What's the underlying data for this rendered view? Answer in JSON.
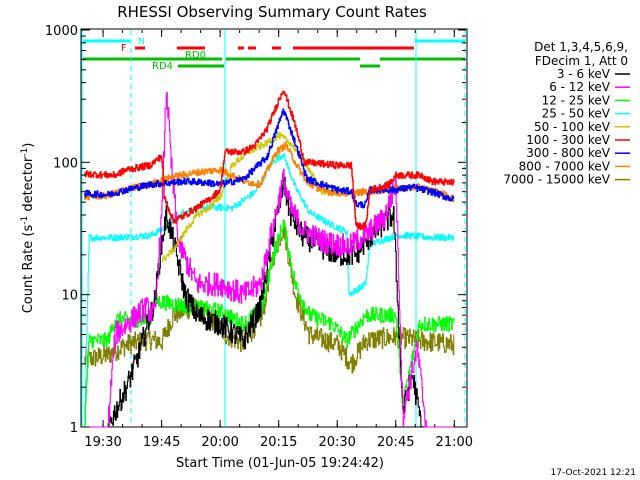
{
  "chart_data": {
    "type": "line",
    "title": "RHESSI Observing Summary Count Rates",
    "xlabel": "Start Time (01-Jun-05 19:24:42)",
    "ylabel_main": "Count Rate (s",
    "ylabel_sup": "-1",
    "ylabel_rest": " detector",
    "ylabel_sup2": "-1",
    "ylabel_end": ")",
    "y_scale": "log",
    "xlim_min": [
      19.41,
      21.05
    ],
    "ylim": [
      1,
      1000
    ],
    "x_ticks": [
      {
        "label": "19:30",
        "t": 19.5
      },
      {
        "label": "19:45",
        "t": 19.75
      },
      {
        "label": "20:00",
        "t": 20.0
      },
      {
        "label": "20:15",
        "t": 20.25
      },
      {
        "label": "20:30",
        "t": 20.5
      },
      {
        "label": "20:45",
        "t": 20.75
      },
      {
        "label": "21:00",
        "t": 21.0
      }
    ],
    "y_ticks": [
      {
        "label": "1",
        "v": 1
      },
      {
        "label": "10",
        "v": 10
      },
      {
        "label": "100",
        "v": 100
      },
      {
        "label": "1000",
        "v": 1000
      }
    ],
    "legend_header": [
      "Det 1,3,4,5,6,9,",
      "FDecim 1, Att 0"
    ],
    "footer_date": "17-Oct-2021 12:21",
    "flag_labels": [
      {
        "text": "N",
        "color": "#00ffff"
      },
      {
        "text": "F",
        "color": "#ff0000"
      },
      {
        "text": "RD0",
        "color": "#00c000"
      },
      {
        "text": "RD4",
        "color": "#00c000"
      }
    ],
    "series": [
      {
        "name": "3 - 6 keV",
        "color": "#000000",
        "points": [
          [
            19.42,
            1.0
          ],
          [
            19.52,
            1.0
          ],
          [
            19.6,
            2.0
          ],
          [
            19.65,
            3.5
          ],
          [
            19.72,
            9
          ],
          [
            19.75,
            25
          ],
          [
            19.77,
            40
          ],
          [
            19.8,
            25
          ],
          [
            19.85,
            10
          ],
          [
            19.9,
            7
          ],
          [
            20.0,
            6
          ],
          [
            20.1,
            4.5
          ],
          [
            20.17,
            8
          ],
          [
            20.22,
            25
          ],
          [
            20.27,
            70
          ],
          [
            20.3,
            40
          ],
          [
            20.35,
            28
          ],
          [
            20.45,
            22
          ],
          [
            20.5,
            20
          ],
          [
            20.58,
            20
          ],
          [
            20.62,
            25
          ],
          [
            20.7,
            35
          ],
          [
            20.74,
            40
          ],
          [
            20.78,
            1.3
          ],
          [
            20.82,
            2.5
          ],
          [
            20.86,
            1.0
          ],
          [
            21.0,
            1.0
          ]
        ]
      },
      {
        "name": "6 - 12 keV",
        "color": "#ff00ff",
        "points": [
          [
            19.42,
            1.0
          ],
          [
            19.52,
            1.0
          ],
          [
            19.55,
            5
          ],
          [
            19.6,
            6
          ],
          [
            19.68,
            8
          ],
          [
            19.72,
            7
          ],
          [
            19.75,
            40
          ],
          [
            19.77,
            380
          ],
          [
            19.79,
            100
          ],
          [
            19.82,
            25
          ],
          [
            19.86,
            17
          ],
          [
            19.9,
            12
          ],
          [
            20.0,
            12
          ],
          [
            20.1,
            10
          ],
          [
            20.17,
            12
          ],
          [
            20.22,
            30
          ],
          [
            20.27,
            75
          ],
          [
            20.3,
            45
          ],
          [
            20.36,
            30
          ],
          [
            20.45,
            25
          ],
          [
            20.55,
            23
          ],
          [
            20.62,
            28
          ],
          [
            20.7,
            38
          ],
          [
            20.75,
            70
          ],
          [
            20.78,
            1.2
          ],
          [
            20.84,
            4
          ],
          [
            20.88,
            1.0
          ],
          [
            21.0,
            1.0
          ]
        ]
      },
      {
        "name": "12 - 25 keV",
        "color": "#00ff00",
        "points": [
          [
            19.42,
            1.0
          ],
          [
            19.44,
            4.5
          ],
          [
            19.52,
            4.5
          ],
          [
            19.55,
            6.5
          ],
          [
            19.7,
            6.5
          ],
          [
            19.72,
            9
          ],
          [
            19.8,
            8.5
          ],
          [
            19.9,
            8
          ],
          [
            20.0,
            7.5
          ],
          [
            20.1,
            6
          ],
          [
            20.18,
            8
          ],
          [
            20.22,
            18
          ],
          [
            20.27,
            35
          ],
          [
            20.32,
            12
          ],
          [
            20.38,
            7
          ],
          [
            20.48,
            6
          ],
          [
            20.54,
            4.5
          ],
          [
            20.62,
            7
          ],
          [
            20.75,
            7
          ],
          [
            20.78,
            1.5
          ],
          [
            20.85,
            6
          ],
          [
            21.0,
            6
          ]
        ]
      },
      {
        "name": "25 - 50 keV",
        "color": "#00ffff",
        "points": [
          [
            19.42,
            1.0
          ],
          [
            19.44,
            27
          ],
          [
            19.55,
            27
          ],
          [
            19.7,
            28
          ],
          [
            19.75,
            31
          ],
          [
            19.8,
            36
          ],
          [
            19.85,
            43
          ],
          [
            19.95,
            46
          ],
          [
            20.05,
            45
          ],
          [
            20.15,
            60
          ],
          [
            20.22,
            100
          ],
          [
            20.27,
            115
          ],
          [
            20.32,
            65
          ],
          [
            20.38,
            42
          ],
          [
            20.47,
            34
          ],
          [
            20.54,
            30
          ],
          [
            20.55,
            10
          ],
          [
            20.62,
            12
          ],
          [
            20.64,
            24
          ],
          [
            20.75,
            28
          ],
          [
            20.8,
            28
          ],
          [
            20.9,
            27
          ],
          [
            21.0,
            27
          ]
        ]
      },
      {
        "name": "50 - 100 keV",
        "color": "#c8c800",
        "points": [
          [
            19.75,
            18
          ],
          [
            19.8,
            22
          ],
          [
            19.85,
            30
          ],
          [
            19.9,
            40
          ],
          [
            19.95,
            45
          ],
          [
            20.0,
            55
          ],
          [
            20.05,
            95
          ],
          [
            20.12,
            120
          ],
          [
            20.2,
            140
          ],
          [
            20.25,
            160
          ],
          [
            20.3,
            140
          ],
          [
            20.37,
            95
          ],
          [
            20.43,
            60
          ],
          [
            20.5,
            60
          ]
        ]
      },
      {
        "name": "100 - 300 keV",
        "color": "#ff0000",
        "points": [
          [
            19.42,
            82
          ],
          [
            19.52,
            80
          ],
          [
            19.55,
            80
          ],
          [
            19.6,
            88
          ],
          [
            19.7,
            95
          ],
          [
            19.75,
            112
          ],
          [
            19.76,
            55
          ],
          [
            19.8,
            36
          ],
          [
            19.85,
            40
          ],
          [
            19.95,
            52
          ],
          [
            20.0,
            62
          ],
          [
            20.02,
            120
          ],
          [
            20.1,
            120
          ],
          [
            20.15,
            135
          ],
          [
            20.2,
            180
          ],
          [
            20.27,
            360
          ],
          [
            20.32,
            190
          ],
          [
            20.36,
            100
          ],
          [
            20.5,
            95
          ],
          [
            20.56,
            95
          ],
          [
            20.58,
            33
          ],
          [
            20.62,
            33
          ],
          [
            20.64,
            62
          ],
          [
            20.72,
            68
          ],
          [
            20.75,
            80
          ],
          [
            20.86,
            80
          ],
          [
            20.9,
            72
          ],
          [
            21.0,
            70
          ]
        ]
      },
      {
        "name": "300 - 800 keV",
        "color": "#0000ff",
        "points": [
          [
            19.42,
            58
          ],
          [
            19.52,
            57
          ],
          [
            19.6,
            62
          ],
          [
            19.7,
            68
          ],
          [
            19.78,
            70
          ],
          [
            19.85,
            72
          ],
          [
            19.95,
            70
          ],
          [
            20.0,
            68
          ],
          [
            20.1,
            75
          ],
          [
            20.2,
            110
          ],
          [
            20.27,
            250
          ],
          [
            20.32,
            140
          ],
          [
            20.37,
            75
          ],
          [
            20.5,
            62
          ],
          [
            20.56,
            60
          ],
          [
            20.58,
            48
          ],
          [
            20.62,
            48
          ],
          [
            20.64,
            62
          ],
          [
            20.75,
            62
          ],
          [
            20.82,
            65
          ],
          [
            20.9,
            60
          ],
          [
            21.0,
            52
          ]
        ]
      },
      {
        "name": "800 - 7000 keV",
        "color": "#ff8000",
        "points": [
          [
            19.42,
            55
          ],
          [
            19.52,
            56
          ],
          [
            19.6,
            63
          ],
          [
            19.7,
            68
          ],
          [
            19.8,
            78
          ],
          [
            19.9,
            84
          ],
          [
            20.0,
            88
          ],
          [
            20.05,
            80
          ],
          [
            20.1,
            72
          ],
          [
            20.17,
            68
          ],
          [
            20.24,
            120
          ],
          [
            20.28,
            135
          ],
          [
            20.32,
            100
          ],
          [
            20.37,
            70
          ],
          [
            20.45,
            60
          ],
          [
            20.55,
            58
          ],
          [
            20.62,
            60
          ],
          [
            20.75,
            63
          ],
          [
            20.85,
            65
          ],
          [
            20.95,
            58
          ],
          [
            21.0,
            52
          ]
        ]
      },
      {
        "name": "7000 - 15000 keV",
        "color": "#808000",
        "points": [
          [
            19.42,
            3.2
          ],
          [
            19.52,
            3.5
          ],
          [
            19.6,
            4.2
          ],
          [
            19.7,
            4.6
          ],
          [
            19.75,
            4.4
          ],
          [
            19.8,
            7
          ],
          [
            19.88,
            8
          ],
          [
            19.95,
            7
          ],
          [
            20.02,
            5
          ],
          [
            20.1,
            4.3
          ],
          [
            20.18,
            7
          ],
          [
            20.22,
            18
          ],
          [
            20.27,
            33
          ],
          [
            20.32,
            10
          ],
          [
            20.38,
            5
          ],
          [
            20.5,
            4.2
          ],
          [
            20.56,
            3.0
          ],
          [
            20.62,
            4.5
          ],
          [
            20.75,
            4.8
          ],
          [
            20.85,
            4.5
          ],
          [
            20.95,
            4.3
          ],
          [
            21.0,
            4.2
          ]
        ]
      }
    ]
  }
}
